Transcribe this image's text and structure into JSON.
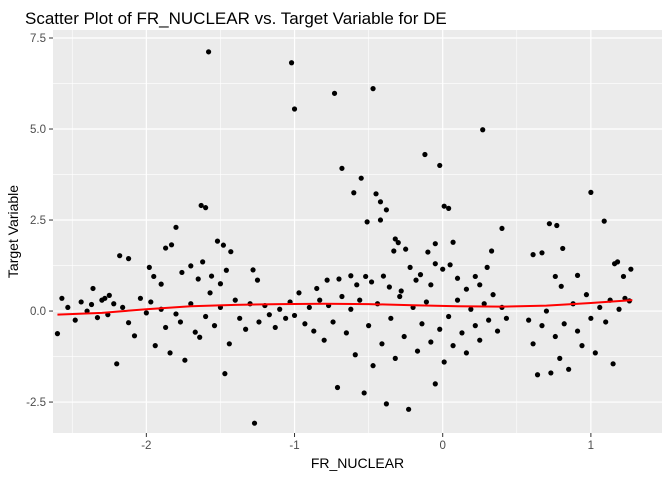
{
  "chart_data": {
    "type": "scatter",
    "title": "Scatter Plot of FR_NUCLEAR vs. Target Variable for DE",
    "xlabel": "FR_NUCLEAR",
    "ylabel": "Target Variable",
    "xlim": [
      -2.63,
      1.48
    ],
    "ylim": [
      -3.35,
      7.72
    ],
    "x_ticks": [
      {
        "value": -2,
        "label": "-2"
      },
      {
        "value": -1,
        "label": "-1"
      },
      {
        "value": 0,
        "label": "0"
      },
      {
        "value": 1,
        "label": "1"
      }
    ],
    "y_ticks": [
      {
        "value": -2.5,
        "label": "-2.5"
      },
      {
        "value": 0,
        "label": "0.0"
      },
      {
        "value": 2.5,
        "label": "2.5"
      },
      {
        "value": 5,
        "label": "5.0"
      },
      {
        "value": 7.5,
        "label": "7.5"
      }
    ],
    "x_minor": [
      -2.5,
      -1.5,
      -0.5,
      0.5
    ],
    "y_minor": [
      -1.25,
      1.25,
      3.75,
      6.25
    ],
    "grid": true,
    "point_color": "#000000",
    "panel_color": "#ebebeb",
    "grid_color": "#ffffff",
    "trend_color": "#ff0000",
    "trend_line": {
      "x": [
        -2.6,
        -2.3,
        -2.0,
        -1.7,
        -1.4,
        -1.1,
        -0.8,
        -0.5,
        -0.2,
        0.1,
        0.4,
        0.7,
        1.0,
        1.28
      ],
      "y": [
        -0.1,
        -0.05,
        0.05,
        0.13,
        0.17,
        0.19,
        0.2,
        0.19,
        0.16,
        0.13,
        0.12,
        0.15,
        0.22,
        0.3
      ]
    },
    "points": [
      {
        "x": -1.58,
        "y": 7.12
      },
      {
        "x": -1.02,
        "y": 6.82
      },
      {
        "x": -0.73,
        "y": 5.98
      },
      {
        "x": -0.47,
        "y": 6.11
      },
      {
        "x": -1.0,
        "y": 5.55
      },
      {
        "x": 0.27,
        "y": 4.98
      },
      {
        "x": -0.12,
        "y": 4.3
      },
      {
        "x": -0.02,
        "y": 4.0
      },
      {
        "x": -0.68,
        "y": 3.92
      },
      {
        "x": -0.55,
        "y": 3.65
      },
      {
        "x": -0.6,
        "y": 3.25
      },
      {
        "x": -0.45,
        "y": 3.22
      },
      {
        "x": 1.0,
        "y": 3.26
      },
      {
        "x": -0.42,
        "y": 3.0
      },
      {
        "x": -1.63,
        "y": 2.9
      },
      {
        "x": -1.6,
        "y": 2.84
      },
      {
        "x": 0.01,
        "y": 2.88
      },
      {
        "x": 0.04,
        "y": 2.82
      },
      {
        "x": -0.38,
        "y": 2.78
      },
      {
        "x": -0.42,
        "y": 2.5
      },
      {
        "x": -1.8,
        "y": 2.3
      },
      {
        "x": -0.51,
        "y": 2.45
      },
      {
        "x": 0.4,
        "y": 2.27
      },
      {
        "x": 0.72,
        "y": 2.4
      },
      {
        "x": 0.77,
        "y": 2.35
      },
      {
        "x": 1.09,
        "y": 2.47
      },
      {
        "x": -2.18,
        "y": 1.52
      },
      {
        "x": -2.12,
        "y": 1.44
      },
      {
        "x": -1.87,
        "y": 1.73
      },
      {
        "x": -1.83,
        "y": 1.82
      },
      {
        "x": -1.52,
        "y": 1.92
      },
      {
        "x": -1.48,
        "y": 1.81
      },
      {
        "x": -1.43,
        "y": 1.63
      },
      {
        "x": -0.3,
        "y": 1.88
      },
      {
        "x": -0.33,
        "y": 1.65
      },
      {
        "x": -0.25,
        "y": 1.7
      },
      {
        "x": -0.32,
        "y": 1.98
      },
      {
        "x": -0.05,
        "y": 1.85
      },
      {
        "x": -0.1,
        "y": 1.62
      },
      {
        "x": 0.07,
        "y": 1.89
      },
      {
        "x": 0.33,
        "y": 1.65
      },
      {
        "x": 0.61,
        "y": 1.55
      },
      {
        "x": 0.67,
        "y": 1.6
      },
      {
        "x": 0.81,
        "y": 1.72
      },
      {
        "x": -2.36,
        "y": 0.62
      },
      {
        "x": -2.28,
        "y": 0.35
      },
      {
        "x": -2.25,
        "y": 0.43
      },
      {
        "x": -1.98,
        "y": 1.2
      },
      {
        "x": -1.95,
        "y": 0.95
      },
      {
        "x": -1.9,
        "y": 0.74
      },
      {
        "x": -1.76,
        "y": 1.06
      },
      {
        "x": -1.7,
        "y": 1.24
      },
      {
        "x": -1.65,
        "y": 0.88
      },
      {
        "x": -1.62,
        "y": 1.35
      },
      {
        "x": -1.56,
        "y": 0.96
      },
      {
        "x": -1.5,
        "y": 0.75
      },
      {
        "x": -1.46,
        "y": 1.12
      },
      {
        "x": -1.28,
        "y": 1.13
      },
      {
        "x": -1.25,
        "y": 0.85
      },
      {
        "x": -0.85,
        "y": 0.62
      },
      {
        "x": -0.78,
        "y": 0.85
      },
      {
        "x": -0.7,
        "y": 0.88
      },
      {
        "x": -0.62,
        "y": 0.97
      },
      {
        "x": -0.58,
        "y": 0.72
      },
      {
        "x": -0.52,
        "y": 0.95
      },
      {
        "x": -0.48,
        "y": 0.8
      },
      {
        "x": -0.4,
        "y": 0.96
      },
      {
        "x": -0.36,
        "y": 0.66
      },
      {
        "x": -0.28,
        "y": 0.55
      },
      {
        "x": -0.22,
        "y": 1.2
      },
      {
        "x": -0.18,
        "y": 0.85
      },
      {
        "x": -0.15,
        "y": 1.0
      },
      {
        "x": -0.08,
        "y": 0.72
      },
      {
        "x": -0.05,
        "y": 1.3
      },
      {
        "x": 0.0,
        "y": 1.15
      },
      {
        "x": 0.05,
        "y": 1.27
      },
      {
        "x": 0.1,
        "y": 0.9
      },
      {
        "x": 0.16,
        "y": 0.6
      },
      {
        "x": 0.22,
        "y": 0.95
      },
      {
        "x": 0.3,
        "y": 1.2
      },
      {
        "x": 0.25,
        "y": 0.72
      },
      {
        "x": 0.76,
        "y": 0.95
      },
      {
        "x": 0.8,
        "y": 0.68
      },
      {
        "x": 0.91,
        "y": 0.98
      },
      {
        "x": 1.18,
        "y": 1.35
      },
      {
        "x": 1.22,
        "y": 0.95
      },
      {
        "x": 1.16,
        "y": 1.3
      },
      {
        "x": 1.27,
        "y": 1.15
      },
      {
        "x": -2.6,
        "y": -0.62
      },
      {
        "x": -2.57,
        "y": 0.35
      },
      {
        "x": -2.53,
        "y": 0.1
      },
      {
        "x": -2.48,
        "y": -0.25
      },
      {
        "x": -2.44,
        "y": 0.25
      },
      {
        "x": -2.4,
        "y": 0.0
      },
      {
        "x": -2.37,
        "y": 0.18
      },
      {
        "x": -2.33,
        "y": -0.18
      },
      {
        "x": -2.3,
        "y": 0.3
      },
      {
        "x": -2.26,
        "y": -0.1
      },
      {
        "x": -2.22,
        "y": 0.2
      },
      {
        "x": -2.2,
        "y": -1.45
      },
      {
        "x": -2.16,
        "y": 0.1
      },
      {
        "x": -2.12,
        "y": -0.32
      },
      {
        "x": -2.08,
        "y": -0.68
      },
      {
        "x": -2.04,
        "y": 0.35
      },
      {
        "x": -2.0,
        "y": -0.05
      },
      {
        "x": -1.97,
        "y": 0.25
      },
      {
        "x": -1.94,
        "y": -0.95
      },
      {
        "x": -1.9,
        "y": 0.05
      },
      {
        "x": -1.87,
        "y": -0.45
      },
      {
        "x": -1.84,
        "y": -1.15
      },
      {
        "x": -1.8,
        "y": -0.08
      },
      {
        "x": -1.77,
        "y": -0.3
      },
      {
        "x": -1.74,
        "y": -1.35
      },
      {
        "x": -1.7,
        "y": 0.2
      },
      {
        "x": -1.67,
        "y": -0.58
      },
      {
        "x": -1.64,
        "y": -0.72
      },
      {
        "x": -1.6,
        "y": -0.15
      },
      {
        "x": -1.57,
        "y": 0.5
      },
      {
        "x": -1.54,
        "y": -0.4
      },
      {
        "x": -1.5,
        "y": 0.1
      },
      {
        "x": -1.47,
        "y": -1.72
      },
      {
        "x": -1.44,
        "y": -0.9
      },
      {
        "x": -1.4,
        "y": 0.3
      },
      {
        "x": -1.37,
        "y": -0.2
      },
      {
        "x": -1.33,
        "y": -0.5
      },
      {
        "x": -1.3,
        "y": 0.2
      },
      {
        "x": -1.27,
        "y": -3.08
      },
      {
        "x": -1.24,
        "y": -0.3
      },
      {
        "x": -1.2,
        "y": 0.15
      },
      {
        "x": -1.17,
        "y": -0.1
      },
      {
        "x": -1.13,
        "y": -0.45
      },
      {
        "x": -1.1,
        "y": 0.05
      },
      {
        "x": -1.06,
        "y": -0.2
      },
      {
        "x": -1.03,
        "y": 0.25
      },
      {
        "x": -1.0,
        "y": -0.12
      },
      {
        "x": -0.97,
        "y": 0.5
      },
      {
        "x": -0.93,
        "y": -0.35
      },
      {
        "x": -0.9,
        "y": 0.1
      },
      {
        "x": -0.87,
        "y": -0.55
      },
      {
        "x": -0.83,
        "y": 0.3
      },
      {
        "x": -0.8,
        "y": -0.8
      },
      {
        "x": -0.77,
        "y": 0.15
      },
      {
        "x": -0.74,
        "y": -0.3
      },
      {
        "x": -0.71,
        "y": -2.1
      },
      {
        "x": -0.68,
        "y": 0.4
      },
      {
        "x": -0.65,
        "y": -0.6
      },
      {
        "x": -0.62,
        "y": 0.05
      },
      {
        "x": -0.59,
        "y": -1.2
      },
      {
        "x": -0.56,
        "y": 0.3
      },
      {
        "x": -0.53,
        "y": -2.25
      },
      {
        "x": -0.5,
        "y": -0.4
      },
      {
        "x": -0.47,
        "y": -1.5
      },
      {
        "x": -0.44,
        "y": 0.2
      },
      {
        "x": -0.41,
        "y": -0.9
      },
      {
        "x": -0.38,
        "y": -2.55
      },
      {
        "x": -0.35,
        "y": -0.2
      },
      {
        "x": -0.32,
        "y": -1.3
      },
      {
        "x": -0.29,
        "y": 0.4
      },
      {
        "x": -0.26,
        "y": -0.7
      },
      {
        "x": -0.23,
        "y": -2.7
      },
      {
        "x": -0.2,
        "y": 0.1
      },
      {
        "x": -0.17,
        "y": -1.1
      },
      {
        "x": -0.14,
        "y": -0.35
      },
      {
        "x": -0.11,
        "y": 0.25
      },
      {
        "x": -0.08,
        "y": -0.85
      },
      {
        "x": -0.05,
        "y": -2.0
      },
      {
        "x": -0.02,
        "y": -0.5
      },
      {
        "x": 0.01,
        "y": -1.4
      },
      {
        "x": 0.04,
        "y": -0.15
      },
      {
        "x": 0.07,
        "y": -0.95
      },
      {
        "x": 0.1,
        "y": 0.3
      },
      {
        "x": 0.13,
        "y": -0.6
      },
      {
        "x": 0.16,
        "y": -1.15
      },
      {
        "x": 0.19,
        "y": 0.05
      },
      {
        "x": 0.22,
        "y": -0.4
      },
      {
        "x": 0.25,
        "y": -0.8
      },
      {
        "x": 0.28,
        "y": 0.2
      },
      {
        "x": 0.31,
        "y": -0.25
      },
      {
        "x": 0.34,
        "y": 0.45
      },
      {
        "x": 0.37,
        "y": -0.55
      },
      {
        "x": 0.4,
        "y": 0.1
      },
      {
        "x": 0.43,
        "y": -0.2
      },
      {
        "x": 0.58,
        "y": -0.25
      },
      {
        "x": 0.61,
        "y": -0.9
      },
      {
        "x": 0.64,
        "y": -1.75
      },
      {
        "x": 0.67,
        "y": -0.4
      },
      {
        "x": 0.7,
        "y": 0.0
      },
      {
        "x": 0.73,
        "y": -1.7
      },
      {
        "x": 0.76,
        "y": -0.7
      },
      {
        "x": 0.79,
        "y": -1.3
      },
      {
        "x": 0.82,
        "y": -0.35
      },
      {
        "x": 0.85,
        "y": -1.6
      },
      {
        "x": 0.88,
        "y": 0.2
      },
      {
        "x": 0.91,
        "y": -0.55
      },
      {
        "x": 0.94,
        "y": -0.95
      },
      {
        "x": 0.97,
        "y": 0.45
      },
      {
        "x": 1.0,
        "y": -0.2
      },
      {
        "x": 1.03,
        "y": -1.15
      },
      {
        "x": 1.06,
        "y": 0.1
      },
      {
        "x": 1.1,
        "y": -0.3
      },
      {
        "x": 1.13,
        "y": 0.3
      },
      {
        "x": 1.15,
        "y": -1.45
      },
      {
        "x": 1.19,
        "y": 0.05
      },
      {
        "x": 1.23,
        "y": 0.35
      },
      {
        "x": 1.26,
        "y": 0.28
      }
    ]
  }
}
